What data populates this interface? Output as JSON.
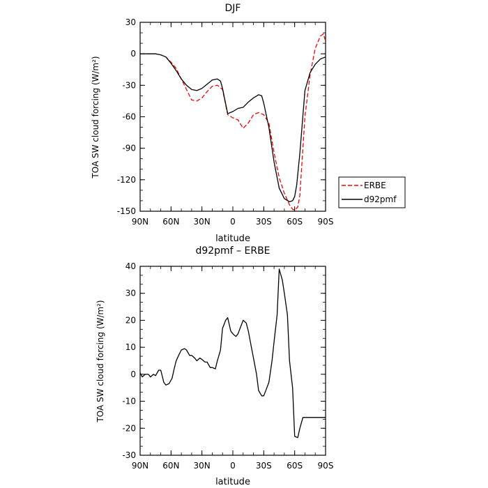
{
  "chart_data": [
    {
      "type": "line",
      "title": "DJF",
      "xlabel": "latitude",
      "ylabel": "TOA SW cloud forcing (W/m²)",
      "ylim": [
        -150,
        30
      ],
      "xlim": [
        90,
        -90
      ],
      "yticks": [
        -150,
        -120,
        -90,
        -60,
        -30,
        0,
        30
      ],
      "xticks": [
        {
          "v": 90,
          "label": "90N"
        },
        {
          "v": 60,
          "label": "60N"
        },
        {
          "v": 30,
          "label": "30N"
        },
        {
          "v": 0,
          "label": "0"
        },
        {
          "v": -30,
          "label": "30S"
        },
        {
          "v": -60,
          "label": "60S"
        },
        {
          "v": -90,
          "label": "90S"
        }
      ],
      "legend": {
        "placement": "right"
      },
      "series": [
        {
          "name": "ERBE",
          "color": "#ff0000",
          "dash": true,
          "x": [
            90,
            85,
            80,
            75,
            70,
            65,
            60,
            55,
            50,
            45,
            40,
            35,
            30,
            25,
            20,
            15,
            10,
            5,
            0,
            -5,
            -10,
            -15,
            -20,
            -25,
            -30,
            -35,
            -40,
            -45,
            -50,
            -55,
            -58,
            -60,
            -63,
            -65,
            -70,
            -75,
            -80,
            -85,
            -88,
            -90
          ],
          "y": [
            0,
            0,
            0,
            0,
            -1,
            -3,
            -8,
            -14,
            -24,
            -34,
            -44,
            -45,
            -42,
            -36,
            -31,
            -30,
            -34,
            -58,
            -61,
            -63,
            -71,
            -66,
            -58,
            -56,
            -58,
            -66,
            -94,
            -118,
            -133,
            -144,
            -148,
            -149,
            -146,
            -135,
            -60,
            -20,
            5,
            17,
            19,
            12
          ]
        },
        {
          "name": "d92pmf",
          "color": "#000000",
          "dash": false,
          "x": [
            90,
            85,
            80,
            75,
            70,
            65,
            60,
            55,
            50,
            45,
            40,
            35,
            30,
            25,
            20,
            15,
            12,
            10,
            5,
            0,
            -5,
            -10,
            -15,
            -20,
            -25,
            -28,
            -30,
            -35,
            -40,
            -45,
            -50,
            -55,
            -58,
            -60,
            -62,
            -65,
            -70,
            -75,
            -80,
            -85,
            -90
          ],
          "y": [
            0,
            0,
            0,
            0,
            -1,
            -3,
            -9,
            -16,
            -24,
            -30,
            -34,
            -35,
            -33,
            -29,
            -25,
            -24,
            -26,
            -33,
            -57,
            -55,
            -52,
            -51,
            -46,
            -42,
            -39,
            -40,
            -47,
            -70,
            -103,
            -128,
            -138,
            -141,
            -140,
            -136,
            -125,
            -95,
            -35,
            -18,
            -10,
            -5,
            -3
          ]
        }
      ]
    },
    {
      "type": "line",
      "title": "d92pmf – ERBE",
      "xlabel": "latitude",
      "ylabel": "TOA SW cloud forcing (W/m²)",
      "ylim": [
        -30,
        40
      ],
      "xlim": [
        90,
        -90
      ],
      "yticks": [
        -30,
        -20,
        -10,
        0,
        10,
        20,
        30,
        40
      ],
      "xticks": [
        {
          "v": 90,
          "label": "90N"
        },
        {
          "v": 60,
          "label": "60N"
        },
        {
          "v": 30,
          "label": "30N"
        },
        {
          "v": 0,
          "label": "0"
        },
        {
          "v": -30,
          "label": "30S"
        },
        {
          "v": -60,
          "label": "60S"
        },
        {
          "v": -90,
          "label": "90S"
        }
      ],
      "series": [
        {
          "color": "#000000",
          "dash": false,
          "x": [
            90,
            88,
            85,
            82,
            80,
            77,
            75,
            72,
            70,
            67,
            65,
            62,
            59,
            57,
            55,
            52,
            50,
            47,
            45,
            42,
            40,
            37,
            35,
            32,
            30,
            27,
            25,
            22,
            20,
            17,
            15,
            12,
            10,
            7,
            5,
            2,
            0,
            -3,
            -5,
            -8,
            -10,
            -13,
            -15,
            -18,
            -20,
            -23,
            -25,
            -28,
            -30,
            -33,
            -35,
            -38,
            -40,
            -43,
            -45,
            -48,
            -50,
            -53,
            -55,
            -58,
            -60,
            -63,
            -65,
            -68,
            -70,
            -73,
            -75,
            -78,
            -80,
            -83,
            -85,
            -88,
            -90
          ],
          "y": [
            0.5,
            -1,
            0,
            0,
            -1,
            0,
            -0.5,
            1.5,
            1.5,
            -3,
            -4,
            -3.5,
            -1.5,
            2,
            5,
            7.5,
            9,
            9.5,
            9,
            7,
            7,
            6,
            5,
            6,
            5.5,
            4.5,
            4.5,
            2.5,
            2.5,
            2,
            5,
            9,
            17,
            20,
            21,
            16,
            15,
            14,
            15,
            18,
            20,
            19,
            16,
            10,
            6,
            0,
            -6,
            -8,
            -8,
            -5,
            -3,
            5,
            12,
            22,
            39,
            35,
            30,
            22,
            5,
            -5,
            -23,
            -23.5,
            -20,
            -16,
            -16,
            -16,
            -16,
            -16,
            -16,
            -16,
            -16,
            -16,
            -16
          ]
        }
      ]
    }
  ]
}
